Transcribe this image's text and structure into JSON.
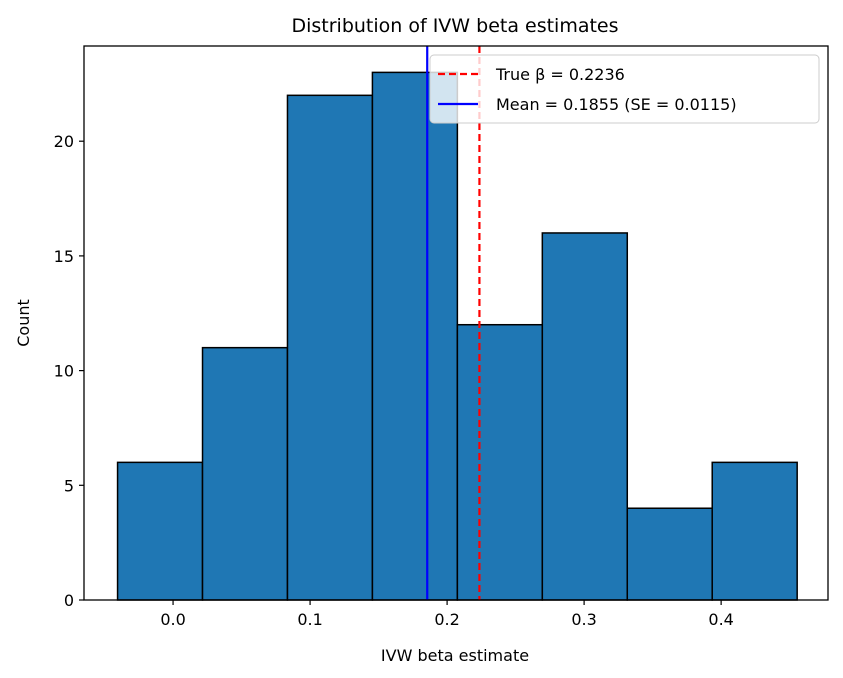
{
  "chart_data": {
    "type": "bar",
    "subtype": "histogram",
    "title": "Distribution of IVW beta estimates",
    "xlabel": "IVW beta estimate",
    "ylabel": "Count",
    "xlim": [
      -0.065,
      0.478
    ],
    "ylim": [
      0,
      24.15
    ],
    "xticks": [
      0.0,
      0.1,
      0.2,
      0.3,
      0.4
    ],
    "xtick_labels": [
      "0.0",
      "0.1",
      "0.2",
      "0.3",
      "0.4"
    ],
    "yticks": [
      0,
      5,
      10,
      15,
      20
    ],
    "ytick_labels": [
      "0",
      "5",
      "10",
      "15",
      "20"
    ],
    "bin_edges": [
      -0.0405,
      0.0215,
      0.0835,
      0.1455,
      0.2075,
      0.2695,
      0.3315,
      0.3935,
      0.4555
    ],
    "values": [
      6,
      11,
      22,
      23,
      12,
      16,
      4,
      6
    ],
    "bar_color": "#1f77b4",
    "bar_edge_color": "#000000",
    "grid": false,
    "legend_position": "top-right",
    "reference_lines": [
      {
        "label": "True β = 0.2236",
        "x": 0.2236,
        "color": "#ff0000",
        "style": "dashed"
      },
      {
        "label": "Mean = 0.1855 (SE = 0.0115)",
        "x": 0.1855,
        "color": "#0000ff",
        "style": "solid"
      }
    ]
  }
}
